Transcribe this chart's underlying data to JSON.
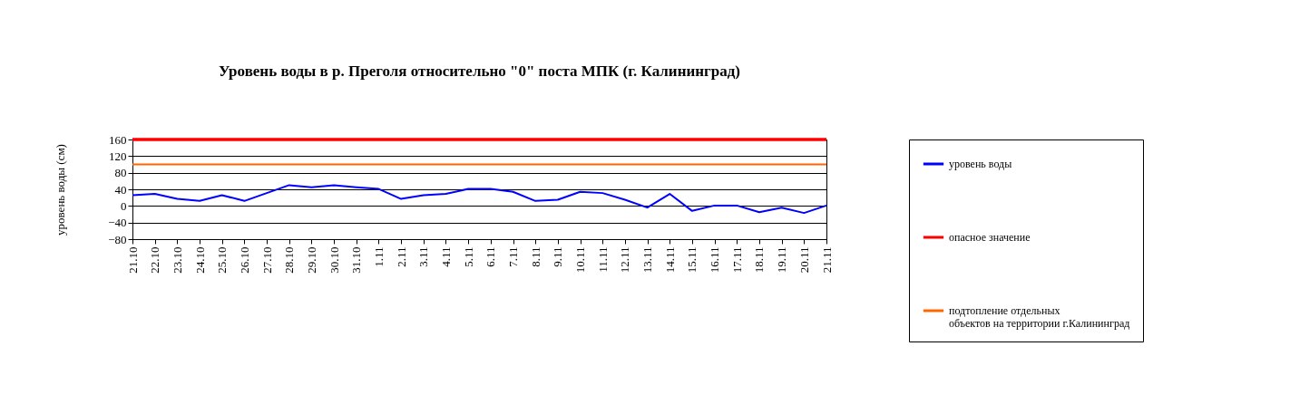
{
  "chart_data": {
    "type": "line",
    "title": "Уровень воды в р. Преголя относительно \"0\" поста МПК (г. Калининград)",
    "ylabel": "уровень воды (см)",
    "categories": [
      "21.10",
      "22.10",
      "23.10",
      "24.10",
      "25.10",
      "26.10",
      "27.10",
      "28.10",
      "29.10",
      "30.10",
      "31.10",
      "1.11",
      "2.11",
      "3.11",
      "4.11",
      "5.11",
      "6.11",
      "7.11",
      "8.11",
      "9.11",
      "10.11",
      "11.11",
      "12.11",
      "13.11",
      "14.11",
      "15.11",
      "16.11",
      "17.11",
      "18.11",
      "19.11",
      "20.11",
      "21.11"
    ],
    "series": [
      {
        "name": "уровень воды",
        "color": "#0000ff",
        "values": [
          26,
          29,
          17,
          12,
          26,
          12,
          31,
          50,
          45,
          50,
          45,
          41,
          17,
          26,
          29,
          41,
          41,
          34,
          12,
          15,
          34,
          31,
          15,
          -4,
          29,
          -12,
          1,
          1,
          -15,
          -4,
          -17,
          1
        ]
      }
    ],
    "ref_lines": [
      {
        "axis": "y",
        "value": 160,
        "label": "опасное значение",
        "color": "#ff0000"
      },
      {
        "axis": "y",
        "value": 100,
        "label": "подтопление отдельных объектов на территории г.Калининград",
        "color": "#ff6600"
      }
    ],
    "ylim": [
      -80,
      160
    ],
    "yticks": [
      -80,
      -40,
      0,
      40,
      80,
      120,
      160
    ],
    "grid": "y",
    "legend": "right",
    "marker": "none",
    "line_style": "solid"
  }
}
